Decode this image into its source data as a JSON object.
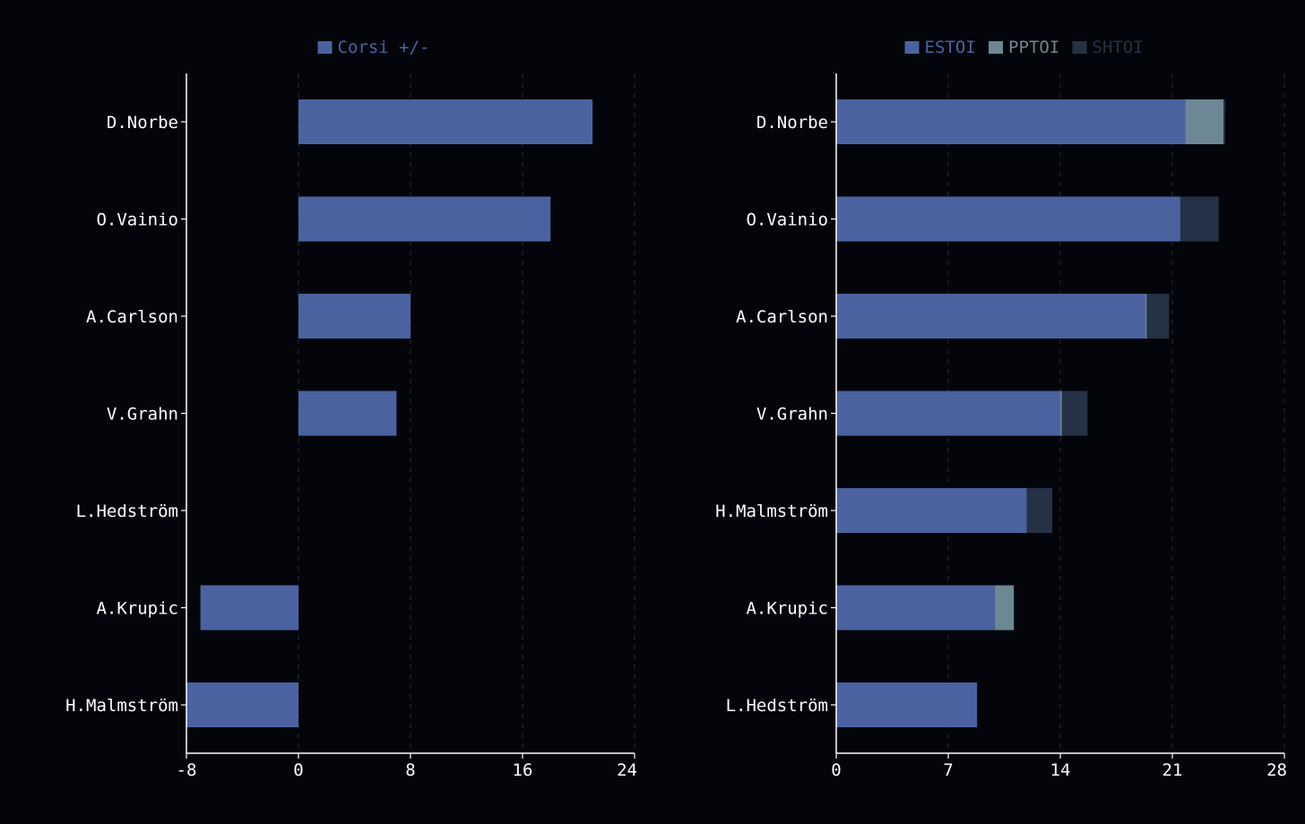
{
  "colors": {
    "background": "#03050b",
    "axis": "#ffffff",
    "grid": "#2a2d36",
    "label": "#ffffff",
    "estoi": "#4a63a0",
    "pptoi": "#6d8794",
    "shtoi": "#253245"
  },
  "chart_data": [
    {
      "type": "bar",
      "orientation": "horizontal",
      "legend": [
        "Corsi +/-"
      ],
      "legend_colors": [
        "#4a63a0"
      ],
      "categories": [
        "D.Norbe",
        "O.Vainio",
        "A.Carlson",
        "V.Grahn",
        "L.Hedström",
        "A.Krupic",
        "H.Malmström"
      ],
      "series": [
        {
          "name": "Corsi +/-",
          "color": "#4a63a0",
          "values": [
            21,
            18,
            8,
            7,
            0,
            -7,
            -8
          ]
        }
      ],
      "xlim": [
        -8,
        24
      ],
      "xticks": [
        -8,
        0,
        8,
        16,
        24
      ],
      "grid": true
    },
    {
      "type": "bar",
      "orientation": "horizontal",
      "stacked": true,
      "legend": [
        "ESTOI",
        "PPTOI",
        "SHTOI"
      ],
      "legend_colors": [
        "#4a63a0",
        "#6d8794",
        "#253245"
      ],
      "categories": [
        "D.Norbe",
        "O.Vainio",
        "A.Carlson",
        "V.Grahn",
        "H.Malmström",
        "A.Krupic",
        "L.Hedström"
      ],
      "series": [
        {
          "name": "ESTOI",
          "color": "#4a63a0",
          "values": [
            21.8,
            21.5,
            19.3,
            14.0,
            11.9,
            9.9,
            8.8
          ]
        },
        {
          "name": "PPTOI",
          "color": "#6d8794",
          "values": [
            2.4,
            0.0,
            0.1,
            0.1,
            0.0,
            1.2,
            0.0
          ]
        },
        {
          "name": "SHTOI",
          "color": "#253245",
          "values": [
            0.1,
            2.4,
            1.4,
            1.6,
            1.6,
            0.0,
            0.0
          ]
        }
      ],
      "xlim": [
        0,
        28
      ],
      "xticks": [
        0,
        7,
        14,
        21,
        28
      ],
      "grid": true
    }
  ]
}
